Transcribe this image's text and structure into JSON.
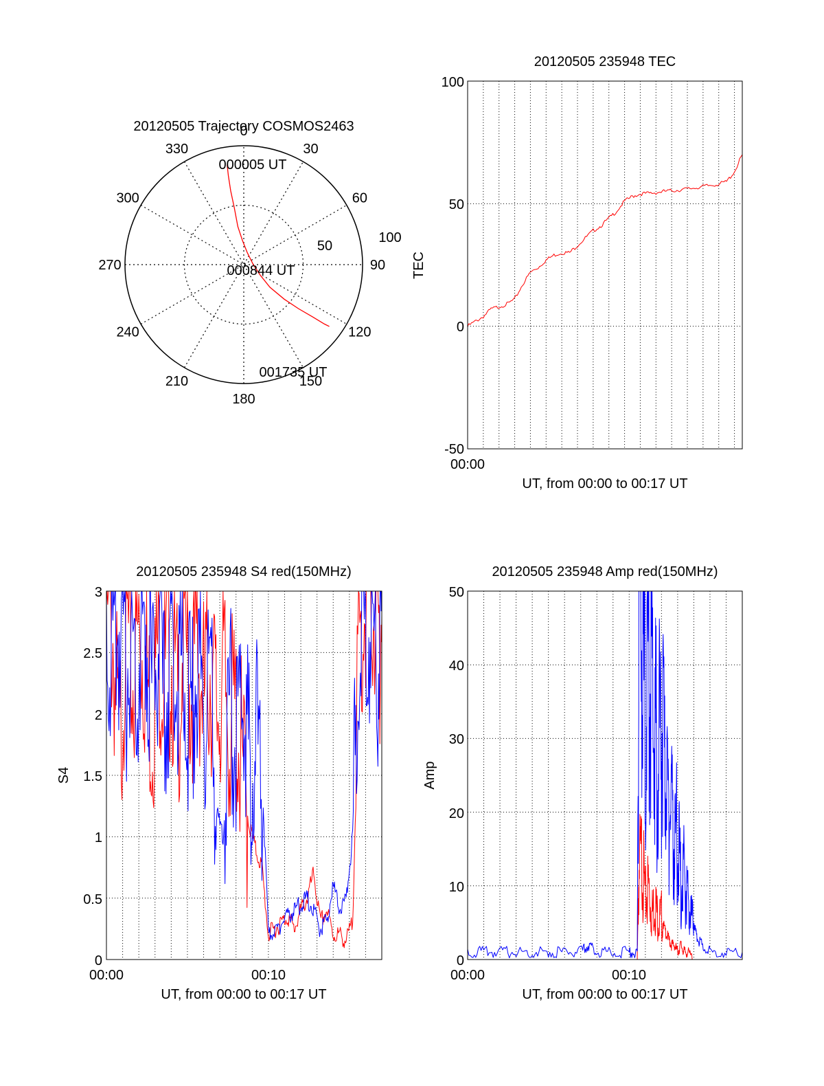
{
  "colors": {
    "red": "#ff0000",
    "blue": "#0000ff",
    "axis": "#000000",
    "grid": "#000000",
    "background": "#ffffff"
  },
  "chart_data": [
    {
      "id": "polar",
      "type": "polar",
      "title": "20120505 Trajectory COSMOS2463",
      "angle_labels": [
        "0",
        "30",
        "60",
        "90",
        "120",
        "150",
        "180",
        "210",
        "240",
        "270",
        "300",
        "330"
      ],
      "radial_labels": [
        "50",
        "100"
      ],
      "radial_max": 100,
      "grid": "dotted",
      "series": [
        {
          "color": "red",
          "points": [
            [
              -14,
              84
            ],
            [
              -13,
              75
            ],
            [
              -11,
              62
            ],
            [
              -8,
              48
            ],
            [
              -5,
              32
            ],
            [
              -1,
              20
            ],
            [
              3,
              10
            ],
            [
              8,
              0
            ],
            [
              14,
              -9
            ],
            [
              22,
              -19
            ],
            [
              34,
              -29
            ],
            [
              46,
              -37
            ],
            [
              58,
              -44
            ],
            [
              68,
              -50
            ],
            [
              72,
              -52
            ]
          ]
        }
      ],
      "annotations": [
        {
          "text": "000005 UT"
        },
        {
          "text": "000844 UT"
        },
        {
          "text": "001735 UT"
        }
      ]
    },
    {
      "id": "tec",
      "type": "line",
      "title": "20120505 235948 TEC",
      "xlabel": "UT, from 00:00 to 00:17 UT",
      "ylabel": "TEC",
      "xlim": [
        0,
        17.5
      ],
      "ylim": [
        -50,
        100
      ],
      "yticks": [
        "100",
        "50",
        "0",
        "-50"
      ],
      "xticks": [
        "00:00"
      ],
      "grid": true,
      "series": [
        {
          "color": "red",
          "x": [
            0,
            0.5,
            1,
            1.5,
            2,
            2.5,
            3,
            3.5,
            4,
            4.5,
            5,
            5.5,
            6,
            6.5,
            7,
            7.5,
            8,
            8.5,
            9,
            9.5,
            10,
            10.5,
            11,
            11.5,
            12,
            12.5,
            13,
            13.5,
            14,
            14.5,
            15,
            15.5,
            16,
            16.5,
            17,
            17.5
          ],
          "y": [
            0,
            2,
            4,
            7,
            8,
            9,
            11,
            17,
            22,
            24,
            27,
            29,
            30,
            30,
            33,
            36,
            39,
            41,
            44,
            47,
            51,
            53,
            54,
            54.2,
            54.5,
            55,
            55.3,
            55.6,
            56,
            56.5,
            57,
            57.5,
            58,
            59,
            63,
            70
          ]
        }
      ]
    },
    {
      "id": "s4",
      "type": "line",
      "title": "20120505 235948 S4 red(150MHz)",
      "xlabel": "UT, from 00:00 to 00:17 UT",
      "ylabel": "S4",
      "xlim": [
        0,
        17
      ],
      "ylim": [
        0,
        3
      ],
      "yticks": [
        "3",
        "2.5",
        "2",
        "1.5",
        "1",
        "0.5",
        "0"
      ],
      "xticks": [
        "00:00",
        "00:10"
      ],
      "grid": true,
      "series": [
        {
          "name": "",
          "color": "red",
          "x": [
            0,
            0.4,
            0.8,
            1.2,
            1.6,
            2,
            2.4,
            2.8,
            3.2,
            3.6,
            4,
            4.4,
            4.8,
            5.2,
            5.6,
            6,
            6.4,
            6.8,
            7.2,
            7.6,
            8,
            8.4,
            8.8,
            9.2,
            9.6,
            10,
            10.4,
            10.8,
            11.2,
            11.6,
            12,
            12.4,
            12.8,
            13.2,
            13.6,
            14,
            14.4,
            14.8,
            15.2,
            15.6,
            16,
            16.4,
            16.8,
            17
          ],
          "y": [
            2.9,
            2.6,
            1.6,
            2.8,
            2.2,
            2.7,
            2.4,
            1.9,
            2.6,
            2.3,
            2.5,
            2.0,
            2.7,
            2.2,
            2.6,
            2.1,
            2.4,
            2.0,
            2.3,
            1.9,
            2.0,
            1.5,
            1.1,
            0.9,
            0.75,
            0.2,
            0.25,
            0.3,
            0.35,
            0.25,
            0.4,
            0.5,
            0.7,
            0.3,
            0.4,
            0.2,
            0.2,
            0.15,
            0.3,
            2.5,
            3.0,
            3.0,
            2.5,
            2.8
          ]
        },
        {
          "name": "",
          "color": "blue",
          "x": [
            0,
            0.4,
            0.8,
            1.2,
            1.6,
            2,
            2.4,
            2.8,
            3.2,
            3.6,
            4,
            4.4,
            4.8,
            5.2,
            5.6,
            6,
            6.4,
            6.8,
            7.2,
            7.6,
            8,
            8.4,
            8.8,
            9.2,
            9.6,
            10,
            10.4,
            10.8,
            11.2,
            11.6,
            12,
            12.4,
            12.8,
            13.2,
            13.6,
            14,
            14.4,
            14.8,
            15.2,
            15.6,
            16,
            16.4,
            16.8,
            17
          ],
          "y": [
            2.8,
            2.5,
            2.7,
            2.3,
            2.6,
            2.4,
            2.8,
            2.2,
            2.5,
            2.0,
            2.6,
            2.3,
            2.4,
            1.9,
            2.5,
            2.1,
            2.2,
            1.2,
            1.0,
            2.0,
            1.8,
            2.2,
            1.6,
            1.8,
            1.5,
            0.2,
            0.22,
            0.3,
            0.35,
            0.4,
            0.45,
            0.5,
            0.4,
            0.25,
            0.3,
            0.6,
            0.4,
            0.5,
            1.0,
            2.6,
            2.8,
            2.7,
            2.4,
            2.9
          ]
        }
      ]
    },
    {
      "id": "amp",
      "type": "line",
      "title": "20120505 235948 Amp red(150MHz)",
      "xlabel": "UT, from 00:00 to 00:17 UT",
      "ylabel": "Amp",
      "xlim": [
        0,
        17
      ],
      "ylim": [
        0,
        50
      ],
      "yticks": [
        "50",
        "40",
        "30",
        "20",
        "10",
        "0"
      ],
      "xticks": [
        "00:00",
        "00:10"
      ],
      "grid": true,
      "series": [
        {
          "name": "",
          "color": "red",
          "x": [
            10.5,
            10.6,
            10.8,
            11.0,
            11.2,
            11.4,
            11.6,
            11.8,
            12.0,
            12.2,
            12.4,
            12.6,
            12.8,
            13.0,
            13.2,
            13.4,
            13.6,
            14.0
          ],
          "y": [
            0,
            12,
            14,
            8,
            10,
            6,
            8,
            5,
            6,
            4,
            3,
            2,
            2,
            1,
            2,
            1,
            1,
            0
          ]
        },
        {
          "name": "",
          "color": "blue",
          "x": [
            0,
            1,
            2,
            3,
            4,
            5,
            6,
            7,
            7.5,
            8,
            9,
            10,
            10.5,
            10.6,
            10.8,
            11.0,
            11.2,
            11.4,
            11.6,
            11.8,
            12.0,
            12.2,
            12.4,
            12.6,
            12.8,
            13.0,
            13.2,
            13.4,
            13.6,
            13.8,
            14.0,
            14.2,
            14.5,
            15,
            16,
            17
          ],
          "y": [
            1,
            1,
            1,
            1,
            1,
            1,
            1,
            1,
            2,
            1,
            1,
            1,
            1,
            48,
            42,
            35,
            40,
            38,
            30,
            28,
            32,
            25,
            22,
            20,
            15,
            18,
            10,
            12,
            8,
            6,
            5,
            3,
            2,
            1,
            1,
            1
          ]
        }
      ]
    }
  ]
}
